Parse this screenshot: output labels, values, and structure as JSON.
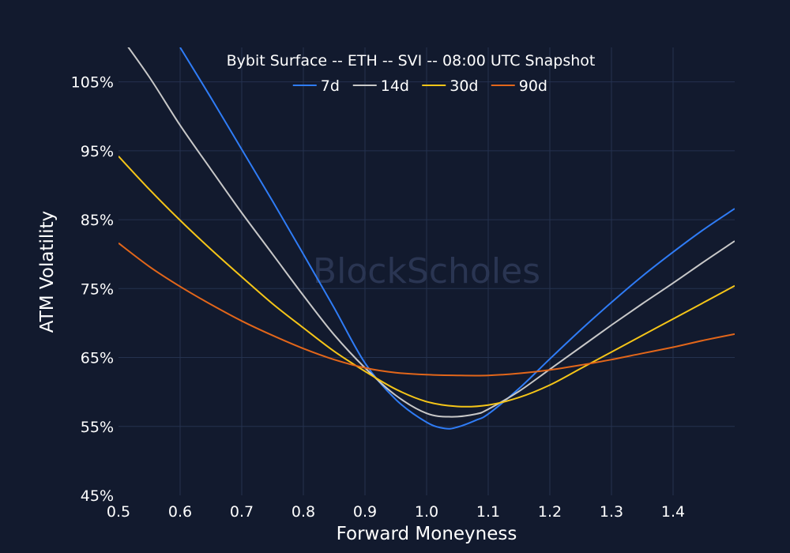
{
  "chart_data": {
    "type": "line",
    "title": "Bybit Surface -- ETH -- SVI -- 08:00 UTC Snapshot",
    "xlabel": "Forward Moneyness",
    "ylabel": "ATM Volatility",
    "xlim": [
      0.5,
      1.5
    ],
    "ylim": [
      45,
      110
    ],
    "x_ticks": [
      0.5,
      0.6,
      0.7,
      0.8,
      0.9,
      1.0,
      1.1,
      1.2,
      1.3,
      1.4
    ],
    "x_tick_labels": [
      "0.5",
      "0.6",
      "0.7",
      "0.8",
      "0.9",
      "1.0",
      "1.1",
      "1.2",
      "1.3",
      "1.4"
    ],
    "y_ticks": [
      45,
      55,
      65,
      75,
      85,
      95,
      105
    ],
    "y_tick_labels": [
      "45%",
      "55%",
      "65%",
      "75%",
      "85%",
      "95%",
      "105%"
    ],
    "grid": true,
    "legend_position": "top-center",
    "watermark": "BlockScholes",
    "series": [
      {
        "name": "7d",
        "color": "#2f7cf6",
        "x": [
          0.6,
          0.65,
          0.7,
          0.75,
          0.8,
          0.85,
          0.9,
          0.95,
          1.0,
          1.03,
          1.05,
          1.08,
          1.1,
          1.15,
          1.2,
          1.25,
          1.3,
          1.35,
          1.4,
          1.45,
          1.5
        ],
        "y": [
          110.0,
          102.7,
          95.2,
          87.7,
          80.0,
          72.2,
          64.2,
          58.9,
          55.6,
          54.7,
          54.9,
          55.9,
          56.8,
          60.5,
          64.8,
          69.0,
          73.0,
          76.8,
          80.3,
          83.6,
          86.6
        ]
      },
      {
        "name": "14d",
        "color": "#c8c8c8",
        "x": [
          0.5,
          0.55,
          0.6,
          0.65,
          0.7,
          0.75,
          0.8,
          0.85,
          0.9,
          0.95,
          1.0,
          1.04,
          1.08,
          1.1,
          1.15,
          1.2,
          1.25,
          1.3,
          1.35,
          1.4,
          1.45,
          1.5
        ],
        "y": [
          112.0,
          105.7,
          98.7,
          92.3,
          86.0,
          80.0,
          74.0,
          68.3,
          63.5,
          59.5,
          56.9,
          56.4,
          56.8,
          57.5,
          60.1,
          63.3,
          66.5,
          69.7,
          72.8,
          75.8,
          78.9,
          81.9
        ]
      },
      {
        "name": "30d",
        "color": "#f5c518",
        "x": [
          0.5,
          0.55,
          0.6,
          0.65,
          0.7,
          0.75,
          0.8,
          0.85,
          0.9,
          0.95,
          1.0,
          1.05,
          1.1,
          1.15,
          1.2,
          1.25,
          1.3,
          1.35,
          1.4,
          1.45,
          1.5
        ],
        "y": [
          94.2,
          89.4,
          84.9,
          80.7,
          76.7,
          72.8,
          69.3,
          65.9,
          63.0,
          60.4,
          58.6,
          57.9,
          58.1,
          59.2,
          61.0,
          63.4,
          65.8,
          68.2,
          70.6,
          73.0,
          75.4
        ]
      },
      {
        "name": "90d",
        "color": "#e2661a",
        "x": [
          0.5,
          0.55,
          0.6,
          0.65,
          0.7,
          0.75,
          0.8,
          0.85,
          0.9,
          0.95,
          1.0,
          1.05,
          1.1,
          1.15,
          1.2,
          1.25,
          1.3,
          1.35,
          1.4,
          1.45,
          1.5
        ],
        "y": [
          81.6,
          78.2,
          75.3,
          72.7,
          70.3,
          68.2,
          66.3,
          64.7,
          63.5,
          62.8,
          62.5,
          62.4,
          62.4,
          62.7,
          63.2,
          63.9,
          64.7,
          65.6,
          66.5,
          67.5,
          68.4
        ]
      }
    ]
  }
}
